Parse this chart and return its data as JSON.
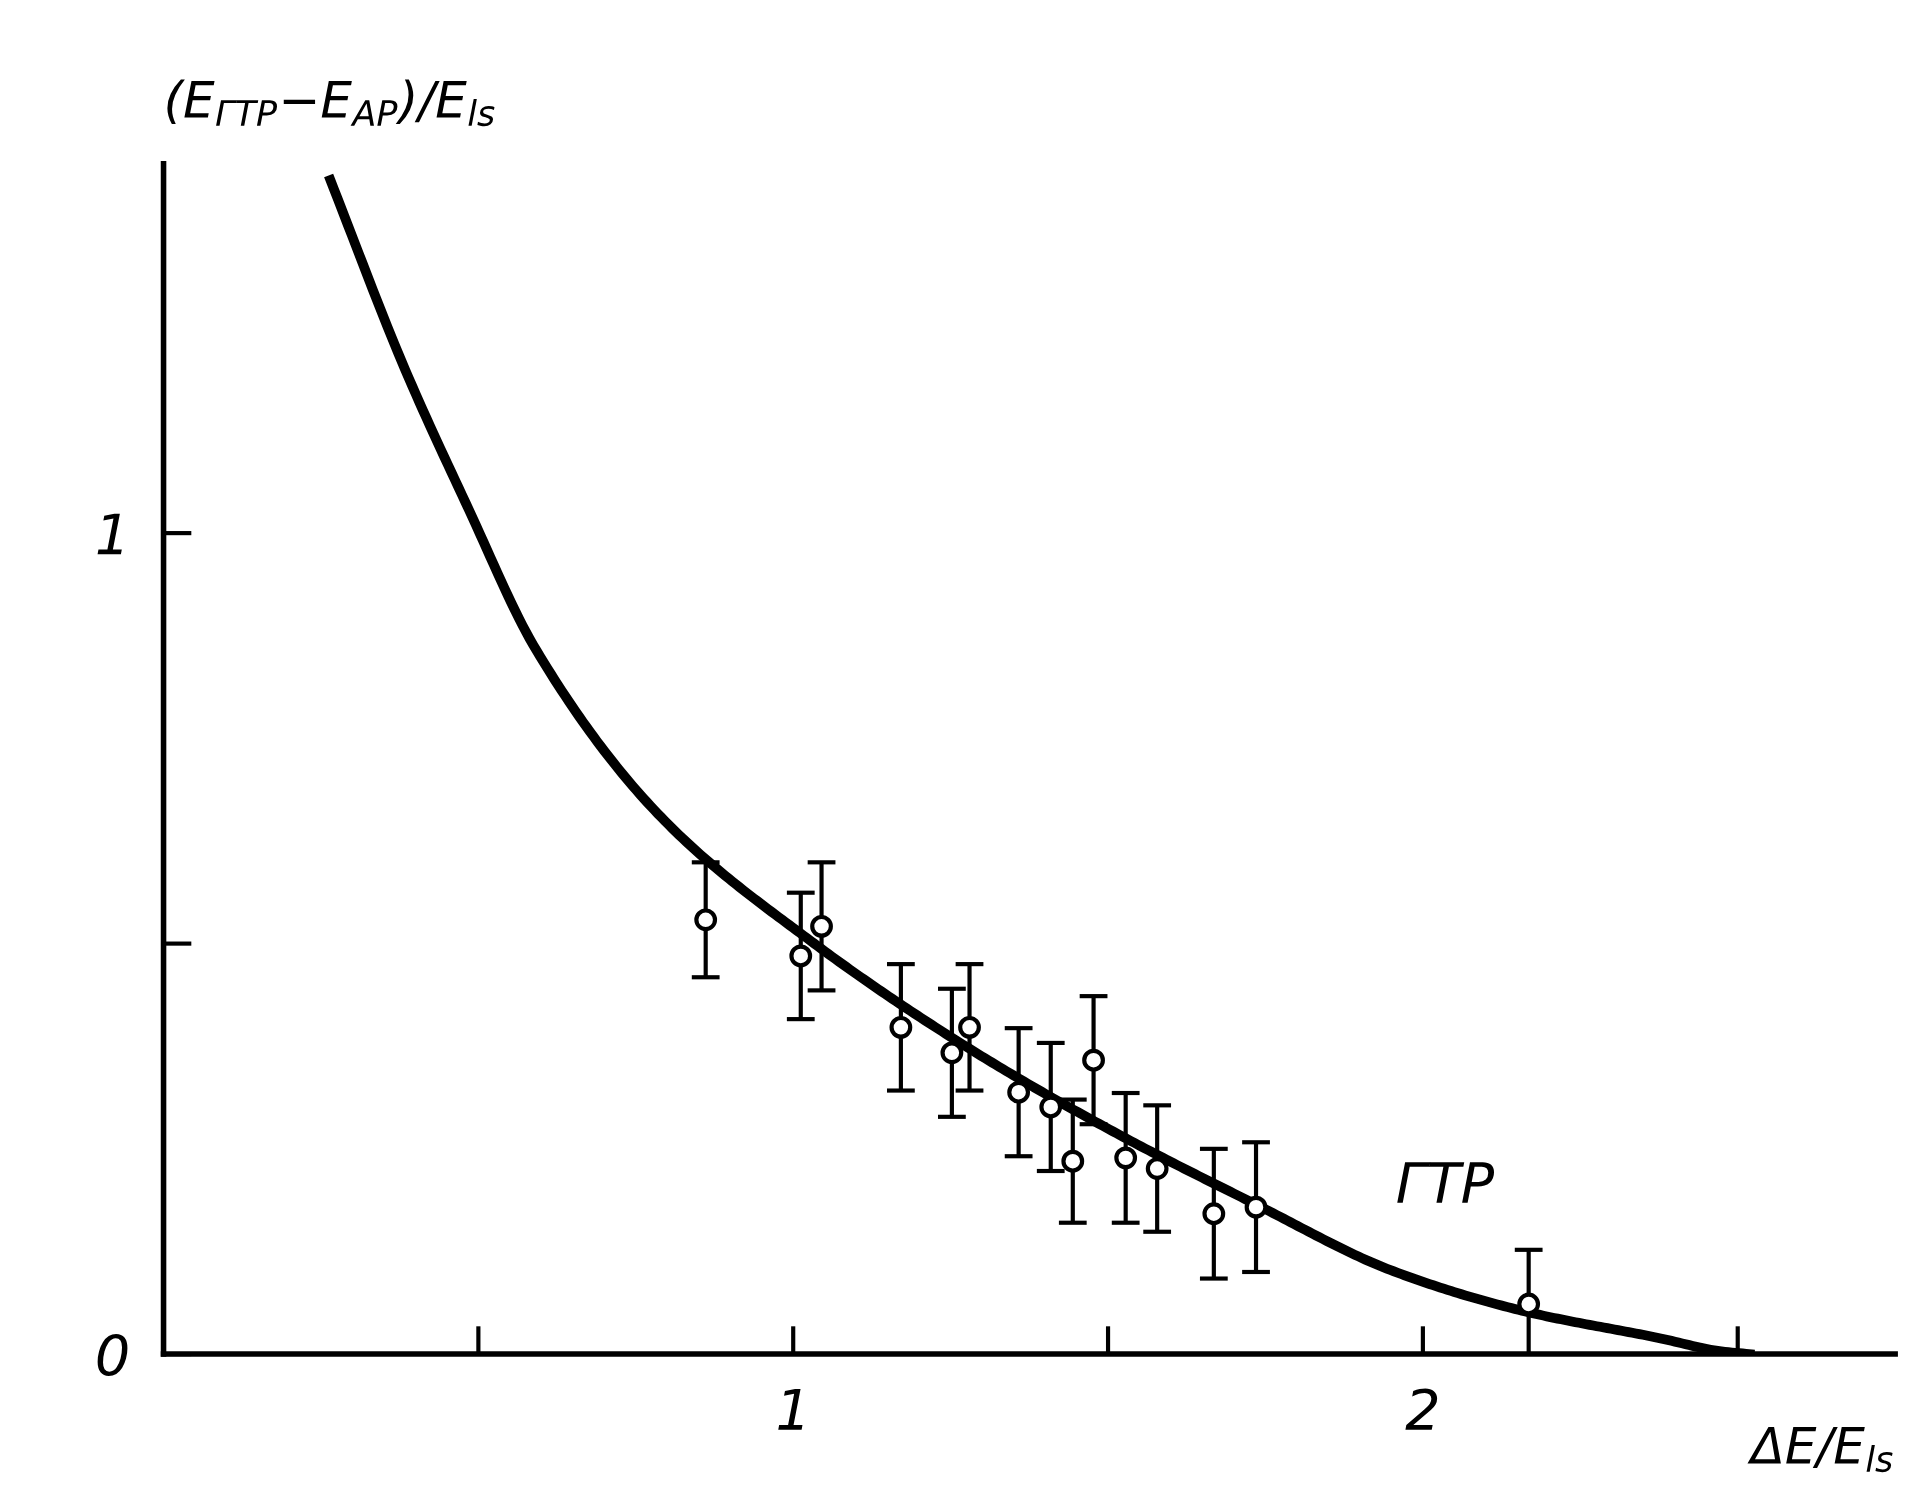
{
  "chart_data": {
    "type": "line",
    "xlabel": "ΔE/E$_{ls}$",
    "ylabel": "(E$_{ГТР}$−E$_{АР}$)/E$_{ls}$",
    "xlim": [
      0,
      2.75
    ],
    "ylim": [
      0,
      1.45
    ],
    "xticks": [
      {
        "value": 0.5,
        "label": null
      },
      1,
      {
        "value": 1.5,
        "label": null
      },
      2,
      {
        "value": 2.5,
        "label": null
      }
    ],
    "yticks": [
      0,
      {
        "value": 0.5,
        "label": null
      },
      1
    ],
    "grid": false,
    "legend": false,
    "annotations": [
      "ГТР"
    ],
    "series": [
      {
        "color": "#000000",
        "marker": "none",
        "line_style": "solid",
        "x": [
          0.265,
          0.381,
          0.484,
          0.59,
          0.789,
          1.03,
          1.282,
          1.523,
          1.733,
          1.953,
          2.162,
          2.372,
          2.477,
          2.519
        ],
        "values": [
          1.43,
          1.204,
          1.03,
          0.86,
          0.655,
          0.502,
          0.371,
          0.265,
          0.183,
          0.101,
          0.052,
          0.02,
          0.003,
          0.0
        ]
      },
      {
        "type": "scatter",
        "color": "#000000",
        "marker": "circle",
        "x": [
          0.861,
          1.012,
          1.045,
          1.171,
          1.252,
          1.28,
          1.358,
          1.409,
          1.444,
          1.477,
          1.528,
          1.578,
          1.668,
          1.735,
          2.168
        ],
        "values": [
          0.529,
          0.485,
          0.521,
          0.398,
          0.367,
          0.398,
          0.319,
          0.301,
          0.235,
          0.358,
          0.239,
          0.226,
          0.171,
          0.179,
          0.061
        ],
        "errors": [
          0.07,
          0.077,
          0.078,
          0.077,
          0.078,
          0.077,
          0.078,
          0.078,
          0.075,
          0.078,
          0.079,
          0.077,
          0.079,
          0.079,
          0.066
        ]
      }
    ]
  }
}
